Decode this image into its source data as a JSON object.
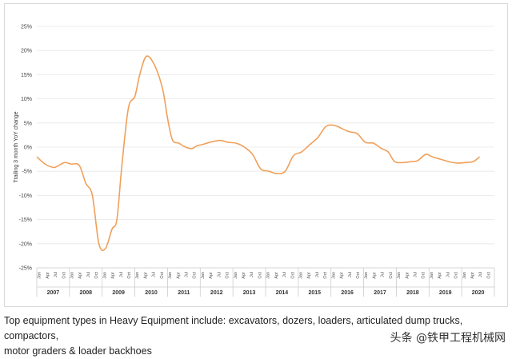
{
  "chart_data": {
    "type": "line",
    "title": "",
    "ylabel": "Trailing 3 month YoY change",
    "xlabel": "",
    "ylim": [
      -25,
      25
    ],
    "yticks": [
      25,
      20,
      15,
      10,
      5,
      0,
      -5,
      -10,
      -15,
      -20,
      -25
    ],
    "ytick_labels": [
      "25%",
      "20%",
      "15%",
      "10%",
      "5%",
      "0%",
      "-5%",
      "-10%",
      "-15%",
      "-20%",
      "-25%"
    ],
    "months": [
      "Jan",
      "Apr",
      "Jul",
      "Oct"
    ],
    "years": [
      "2007",
      "2008",
      "2009",
      "2010",
      "2011",
      "2012",
      "2013",
      "2014",
      "2015",
      "2016",
      "2017",
      "2018",
      "2019",
      "2020"
    ],
    "grid": true,
    "line_color": "#f0a05a",
    "series": [
      {
        "name": "Heavy Equipment",
        "x": [
          2007.0,
          2007.25,
          2007.5,
          2007.62,
          2007.85,
          2008.05,
          2008.3,
          2008.5,
          2008.7,
          2008.9,
          2009.1,
          2009.3,
          2009.45,
          2009.6,
          2009.8,
          2010.0,
          2010.15,
          2010.35,
          2010.6,
          2010.85,
          2011.0,
          2011.15,
          2011.35,
          2011.55,
          2011.75,
          2011.9,
          2012.05,
          2012.3,
          2012.6,
          2012.85,
          2013.1,
          2013.35,
          2013.6,
          2013.85,
          2014.1,
          2014.35,
          2014.6,
          2014.85,
          2015.1,
          2015.35,
          2015.6,
          2015.85,
          2016.1,
          2016.35,
          2016.55,
          2016.8,
          2017.05,
          2017.3,
          2017.55,
          2017.75,
          2017.95,
          2018.2,
          2018.45,
          2018.65,
          2018.9,
          2019.1,
          2019.35,
          2019.6,
          2019.85,
          2020.1,
          2020.35,
          2020.55
        ],
        "values": [
          -2.0,
          -3.5,
          -4.2,
          -4.0,
          -3.2,
          -3.5,
          -3.8,
          -7.5,
          -10.0,
          -20.0,
          -21.0,
          -17.0,
          -15.0,
          -4.0,
          8.0,
          10.5,
          15.0,
          18.8,
          17.0,
          12.0,
          6.0,
          1.5,
          0.8,
          0.0,
          -0.3,
          0.3,
          0.5,
          1.0,
          1.4,
          1.0,
          0.8,
          0.0,
          -1.5,
          -4.5,
          -5.0,
          -5.5,
          -5.0,
          -1.8,
          -1.0,
          0.5,
          2.0,
          4.3,
          4.5,
          3.8,
          3.2,
          2.8,
          1.0,
          0.8,
          -0.3,
          -1.0,
          -3.0,
          -3.2,
          -3.0,
          -2.8,
          -1.5,
          -2.0,
          -2.5,
          -3.0,
          -3.3,
          -3.2,
          -3.0,
          -2.0
        ]
      }
    ]
  },
  "caption": {
    "line1": "Top equipment types in Heavy Equipment include: excavators, dozers, loaders, articulated dump trucks, compactors,",
    "line2": "motor graders & loader backhoes"
  },
  "watermark": "头条 @铁甲工程机械网"
}
